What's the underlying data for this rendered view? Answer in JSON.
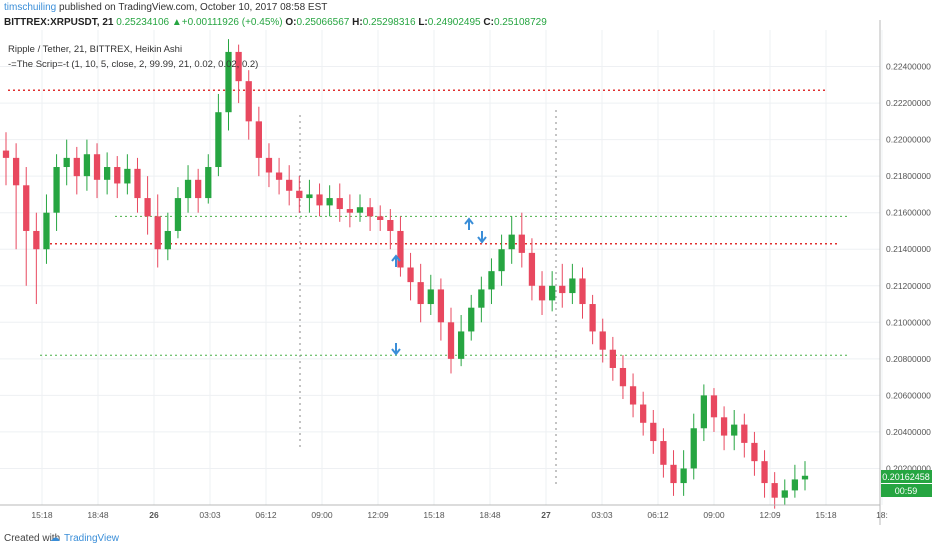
{
  "header": {
    "username": "timschuiling",
    "published_text": "published on TradingView.com, October 10, 2017 08:58 EST",
    "symbol": "BITTREX:XRPUSDT, 21",
    "last": "0.25234106",
    "change": "+0.00111926 (+0.45%)",
    "o_label": "O:",
    "o": "0.25066567",
    "h_label": "H:",
    "h": "0.25298316",
    "l_label": "L:",
    "l": "0.24902495",
    "c_label": "C:",
    "c": "0.25108729"
  },
  "legend": {
    "main": "Ripple / Tether, 21, BITTREX, Heikin Ashi",
    "indicator": "-=The Scrip=-t (1, 10, 5, close, 2, 99.99, 21, 0.02, 0.02, 0.2)"
  },
  "price_badge": "0.20162458",
  "time_badge": "00:59",
  "footer": {
    "created_with": "Created with",
    "brand": "TradingView"
  },
  "colors": {
    "up": "#26a541",
    "down": "#e8485f",
    "arrow": "#3a8ed8",
    "red_level": "#e03030",
    "green_level": "#49b049"
  },
  "chart_data": {
    "type": "candlestick",
    "style": "Heikin Ashi",
    "ylim": [
      0.2,
      0.226
    ],
    "y_ticks": [
      "0.22400000",
      "0.22200000",
      "0.22000000",
      "0.21800000",
      "0.21600000",
      "0.21400000",
      "0.21200000",
      "0.21000000",
      "0.20800000",
      "0.20600000",
      "0.20400000",
      "0.20200000"
    ],
    "y_tick_values": [
      0.224,
      0.222,
      0.22,
      0.218,
      0.216,
      0.214,
      0.212,
      0.21,
      0.208,
      0.206,
      0.204,
      0.202
    ],
    "x_ticks": [
      "15:18",
      "18:48",
      "26",
      "03:03",
      "06:12",
      "09:00",
      "12:09",
      "15:18",
      "18:48",
      "27",
      "03:03",
      "06:12",
      "09:00",
      "12:09",
      "15:18",
      "18:"
    ],
    "horizontal_levels": [
      {
        "value": 0.2227,
        "color": "red"
      },
      {
        "value": 0.2158,
        "color": "green"
      },
      {
        "value": 0.2143,
        "color": "red"
      },
      {
        "value": 0.2082,
        "color": "green"
      }
    ],
    "vertical_markers": [
      "06:12",
      "27"
    ],
    "arrows": [
      {
        "time": "16:40",
        "direction": "up"
      },
      {
        "time": "18:00",
        "direction": "down"
      },
      {
        "time": "12:09",
        "direction": "up"
      },
      {
        "time": "12:09",
        "direction": "down"
      }
    ],
    "candles": [
      {
        "o": 0.2194,
        "c": 0.219,
        "h": 0.2204,
        "l": 0.2175
      },
      {
        "o": 0.219,
        "c": 0.2175,
        "h": 0.2198,
        "l": 0.214
      },
      {
        "o": 0.2175,
        "c": 0.215,
        "h": 0.2185,
        "l": 0.212
      },
      {
        "o": 0.215,
        "c": 0.214,
        "h": 0.216,
        "l": 0.211
      },
      {
        "o": 0.214,
        "c": 0.216,
        "h": 0.217,
        "l": 0.2132
      },
      {
        "o": 0.216,
        "c": 0.2185,
        "h": 0.2192,
        "l": 0.215
      },
      {
        "o": 0.2185,
        "c": 0.219,
        "h": 0.22,
        "l": 0.2175
      },
      {
        "o": 0.219,
        "c": 0.218,
        "h": 0.2196,
        "l": 0.217
      },
      {
        "o": 0.218,
        "c": 0.2192,
        "h": 0.22,
        "l": 0.2172
      },
      {
        "o": 0.2192,
        "c": 0.2178,
        "h": 0.2198,
        "l": 0.2168
      },
      {
        "o": 0.2178,
        "c": 0.2185,
        "h": 0.2193,
        "l": 0.217
      },
      {
        "o": 0.2185,
        "c": 0.2176,
        "h": 0.2191,
        "l": 0.2168
      },
      {
        "o": 0.2176,
        "c": 0.2184,
        "h": 0.2192,
        "l": 0.217
      },
      {
        "o": 0.2184,
        "c": 0.2168,
        "h": 0.219,
        "l": 0.216
      },
      {
        "o": 0.2168,
        "c": 0.2158,
        "h": 0.218,
        "l": 0.2148
      },
      {
        "o": 0.2158,
        "c": 0.214,
        "h": 0.217,
        "l": 0.213
      },
      {
        "o": 0.214,
        "c": 0.215,
        "h": 0.216,
        "l": 0.2134
      },
      {
        "o": 0.215,
        "c": 0.2168,
        "h": 0.2174,
        "l": 0.2146
      },
      {
        "o": 0.2168,
        "c": 0.2178,
        "h": 0.2186,
        "l": 0.216
      },
      {
        "o": 0.2178,
        "c": 0.2168,
        "h": 0.2184,
        "l": 0.216
      },
      {
        "o": 0.2168,
        "c": 0.2185,
        "h": 0.2192,
        "l": 0.2165
      },
      {
        "o": 0.2185,
        "c": 0.2215,
        "h": 0.2225,
        "l": 0.218
      },
      {
        "o": 0.2215,
        "c": 0.2248,
        "h": 0.2255,
        "l": 0.2205
      },
      {
        "o": 0.2248,
        "c": 0.2232,
        "h": 0.2252,
        "l": 0.222
      },
      {
        "o": 0.2232,
        "c": 0.221,
        "h": 0.2238,
        "l": 0.22
      },
      {
        "o": 0.221,
        "c": 0.219,
        "h": 0.2218,
        "l": 0.218
      },
      {
        "o": 0.219,
        "c": 0.2182,
        "h": 0.2198,
        "l": 0.2174
      },
      {
        "o": 0.2182,
        "c": 0.2178,
        "h": 0.219,
        "l": 0.217
      },
      {
        "o": 0.2178,
        "c": 0.2172,
        "h": 0.2186,
        "l": 0.2164
      },
      {
        "o": 0.2172,
        "c": 0.2168,
        "h": 0.218,
        "l": 0.216
      },
      {
        "o": 0.2168,
        "c": 0.217,
        "h": 0.2178,
        "l": 0.216
      },
      {
        "o": 0.217,
        "c": 0.2164,
        "h": 0.2176,
        "l": 0.2158
      },
      {
        "o": 0.2164,
        "c": 0.2168,
        "h": 0.2175,
        "l": 0.2158
      },
      {
        "o": 0.2168,
        "c": 0.2162,
        "h": 0.2176,
        "l": 0.2155
      },
      {
        "o": 0.2162,
        "c": 0.216,
        "h": 0.217,
        "l": 0.2152
      },
      {
        "o": 0.216,
        "c": 0.2163,
        "h": 0.217,
        "l": 0.2155
      },
      {
        "o": 0.2163,
        "c": 0.2158,
        "h": 0.2168,
        "l": 0.215
      },
      {
        "o": 0.2158,
        "c": 0.2156,
        "h": 0.2164,
        "l": 0.215
      },
      {
        "o": 0.2156,
        "c": 0.215,
        "h": 0.2162,
        "l": 0.214
      },
      {
        "o": 0.215,
        "c": 0.213,
        "h": 0.2158,
        "l": 0.2125
      },
      {
        "o": 0.213,
        "c": 0.2122,
        "h": 0.2138,
        "l": 0.2112
      },
      {
        "o": 0.2122,
        "c": 0.211,
        "h": 0.2132,
        "l": 0.21
      },
      {
        "o": 0.211,
        "c": 0.2118,
        "h": 0.2126,
        "l": 0.2104
      },
      {
        "o": 0.2118,
        "c": 0.21,
        "h": 0.2124,
        "l": 0.209
      },
      {
        "o": 0.21,
        "c": 0.208,
        "h": 0.2108,
        "l": 0.2072
      },
      {
        "o": 0.208,
        "c": 0.2095,
        "h": 0.2104,
        "l": 0.2076
      },
      {
        "o": 0.2095,
        "c": 0.2108,
        "h": 0.2115,
        "l": 0.209
      },
      {
        "o": 0.2108,
        "c": 0.2118,
        "h": 0.2125,
        "l": 0.21
      },
      {
        "o": 0.2118,
        "c": 0.2128,
        "h": 0.2135,
        "l": 0.211
      },
      {
        "o": 0.2128,
        "c": 0.214,
        "h": 0.2148,
        "l": 0.212
      },
      {
        "o": 0.214,
        "c": 0.2148,
        "h": 0.2158,
        "l": 0.2132
      },
      {
        "o": 0.2148,
        "c": 0.2138,
        "h": 0.216,
        "l": 0.213
      },
      {
        "o": 0.2138,
        "c": 0.212,
        "h": 0.2146,
        "l": 0.2112
      },
      {
        "o": 0.212,
        "c": 0.2112,
        "h": 0.2128,
        "l": 0.2104
      },
      {
        "o": 0.2112,
        "c": 0.212,
        "h": 0.2128,
        "l": 0.2106
      },
      {
        "o": 0.212,
        "c": 0.2116,
        "h": 0.2132,
        "l": 0.2108
      },
      {
        "o": 0.2116,
        "c": 0.2124,
        "h": 0.2132,
        "l": 0.211
      },
      {
        "o": 0.2124,
        "c": 0.211,
        "h": 0.213,
        "l": 0.2102
      },
      {
        "o": 0.211,
        "c": 0.2095,
        "h": 0.2115,
        "l": 0.2088
      },
      {
        "o": 0.2095,
        "c": 0.2085,
        "h": 0.2102,
        "l": 0.2078
      },
      {
        "o": 0.2085,
        "c": 0.2075,
        "h": 0.2092,
        "l": 0.2068
      },
      {
        "o": 0.2075,
        "c": 0.2065,
        "h": 0.2082,
        "l": 0.2058
      },
      {
        "o": 0.2065,
        "c": 0.2055,
        "h": 0.2072,
        "l": 0.2048
      },
      {
        "o": 0.2055,
        "c": 0.2045,
        "h": 0.2062,
        "l": 0.2038
      },
      {
        "o": 0.2045,
        "c": 0.2035,
        "h": 0.2052,
        "l": 0.2028
      },
      {
        "o": 0.2035,
        "c": 0.2022,
        "h": 0.2042,
        "l": 0.2015
      },
      {
        "o": 0.2022,
        "c": 0.2012,
        "h": 0.203,
        "l": 0.2005
      },
      {
        "o": 0.2012,
        "c": 0.202,
        "h": 0.203,
        "l": 0.2005
      },
      {
        "o": 0.202,
        "c": 0.2042,
        "h": 0.205,
        "l": 0.2014
      },
      {
        "o": 0.2042,
        "c": 0.206,
        "h": 0.2066,
        "l": 0.2035
      },
      {
        "o": 0.206,
        "c": 0.2048,
        "h": 0.2064,
        "l": 0.204
      },
      {
        "o": 0.2048,
        "c": 0.2038,
        "h": 0.2054,
        "l": 0.203
      },
      {
        "o": 0.2038,
        "c": 0.2044,
        "h": 0.2052,
        "l": 0.203
      },
      {
        "o": 0.2044,
        "c": 0.2034,
        "h": 0.205,
        "l": 0.2026
      },
      {
        "o": 0.2034,
        "c": 0.2024,
        "h": 0.204,
        "l": 0.2016
      },
      {
        "o": 0.2024,
        "c": 0.2012,
        "h": 0.203,
        "l": 0.2004
      },
      {
        "o": 0.2012,
        "c": 0.2004,
        "h": 0.2018,
        "l": 0.1998
      },
      {
        "o": 0.2004,
        "c": 0.2008,
        "h": 0.2014,
        "l": 0.2
      },
      {
        "o": 0.2008,
        "c": 0.2014,
        "h": 0.2022,
        "l": 0.2004
      },
      {
        "o": 0.2014,
        "c": 0.2016,
        "h": 0.2024,
        "l": 0.2008
      }
    ]
  }
}
